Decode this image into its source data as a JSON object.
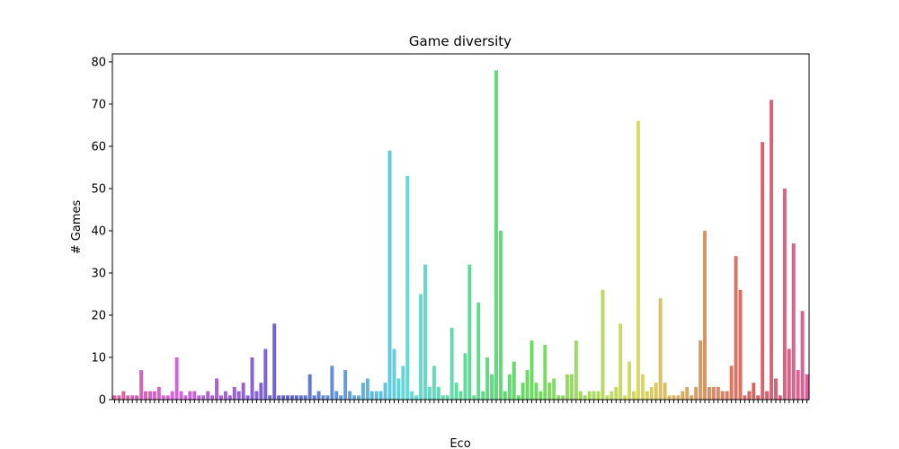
{
  "chart_data": {
    "type": "bar",
    "title": "Game diversity",
    "x_label": "Eco",
    "y_label": "# Games",
    "palette": "husl",
    "categories": [
      null,
      null,
      null,
      null,
      null,
      null,
      null,
      null,
      null,
      null,
      null,
      null,
      null,
      null,
      null,
      null,
      null,
      null,
      null,
      null,
      null,
      null,
      null,
      null,
      null,
      null,
      null,
      null,
      null,
      null,
      null,
      null,
      null,
      null,
      null,
      null,
      null,
      null,
      null,
      null,
      null,
      null,
      null,
      null,
      null,
      null,
      null,
      null,
      null,
      null,
      null,
      null,
      null,
      null,
      null,
      null,
      null,
      null,
      null,
      null,
      null,
      null,
      null,
      null,
      null,
      null,
      null,
      null,
      null,
      null,
      null,
      null,
      null,
      null,
      null,
      null,
      null,
      null,
      null,
      null,
      null,
      null,
      null,
      null,
      null,
      null,
      null,
      null,
      null,
      null,
      null,
      null,
      null,
      null,
      null,
      null,
      null,
      null,
      null,
      null,
      null,
      null,
      null,
      null,
      null,
      null,
      null,
      null,
      null,
      null,
      null,
      null,
      null,
      null,
      null,
      null,
      null,
      null,
      null,
      null,
      null,
      null,
      null,
      null,
      null,
      null,
      null,
      null,
      null,
      null,
      null,
      null,
      null,
      null,
      null,
      null,
      null,
      null,
      null,
      null,
      null,
      null,
      null,
      null,
      null,
      null,
      null,
      null,
      null,
      null,
      null,
      null,
      null,
      null,
      null,
      null,
      null
    ],
    "values": [
      1,
      1,
      2,
      1,
      1,
      1,
      7,
      2,
      2,
      2,
      3,
      1,
      1,
      2,
      10,
      2,
      1,
      2,
      2,
      1,
      1,
      2,
      1,
      5,
      1,
      2,
      1,
      3,
      2,
      4,
      1,
      10,
      2,
      4,
      12,
      1,
      18,
      1,
      1,
      1,
      1,
      1,
      1,
      1,
      6,
      1,
      2,
      1,
      1,
      8,
      2,
      1,
      7,
      2,
      1,
      1,
      4,
      5,
      2,
      2,
      2,
      4,
      59,
      12,
      5,
      8,
      53,
      2,
      1,
      25,
      32,
      3,
      8,
      3,
      1,
      1,
      17,
      4,
      2,
      11,
      32,
      1,
      23,
      2,
      10,
      6,
      78,
      40,
      2,
      6,
      9,
      1,
      4,
      7,
      14,
      4,
      2,
      13,
      4,
      5,
      1,
      1,
      6,
      6,
      14,
      2,
      1,
      2,
      2,
      2,
      26,
      1,
      2,
      3,
      18,
      1,
      9,
      2,
      66,
      6,
      2,
      3,
      4,
      24,
      4,
      1,
      1,
      1,
      2,
      3,
      1,
      3,
      14,
      40,
      3,
      3,
      3,
      2,
      2,
      8,
      34,
      26,
      1,
      2,
      4,
      1,
      61,
      2,
      71,
      5,
      1,
      50,
      12,
      37,
      7,
      21,
      6
    ],
    "ylim": [
      0,
      81.9
    ],
    "yticks": [
      0,
      10,
      20,
      30,
      40,
      50,
      60,
      70,
      80
    ]
  }
}
